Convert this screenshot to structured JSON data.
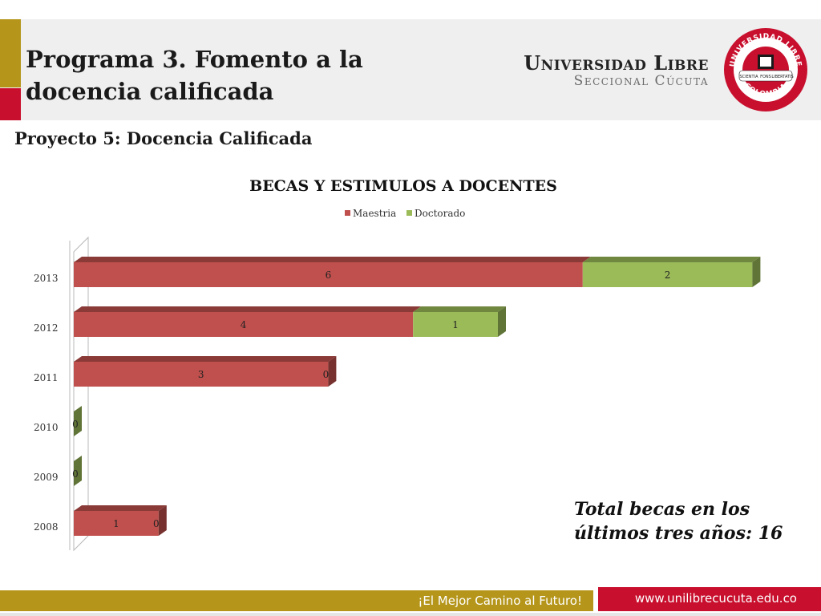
{
  "slide": {
    "title": "Programa 3. Fomento a la docencia calificada",
    "subtitle": "Proyecto 5: Docencia Calificada",
    "total_note": "Total becas en los últimos tres años: 16"
  },
  "logo": {
    "name": "Universidad Libre",
    "sub": "Seccional Cúcuta",
    "seal_top": "UNIVERSIDAD LIBRE",
    "seal_bottom": "COLOMBIA",
    "seal_left": "SCIENTIA",
    "seal_middle": "FONS",
    "seal_right": "LIBERTATIS"
  },
  "footer": {
    "motto": "¡El Mejor Camino al Futuro!",
    "url": "www.unilibrecucuta.edu.co"
  },
  "colors": {
    "maestria": "#c0504d",
    "doctorado": "#9bbb59",
    "accent_olive": "#b5961b",
    "accent_red": "#c8102e"
  },
  "chart_data": {
    "type": "bar",
    "orientation": "horizontal",
    "stacked": true,
    "three_d": true,
    "title": "BECAS Y ESTIMULOS A DOCENTES",
    "categories": [
      "2013",
      "2012",
      "2011",
      "2010",
      "2009",
      "2008"
    ],
    "series": [
      {
        "name": "Maestria",
        "values": [
          6,
          4,
          3,
          0,
          0,
          1
        ],
        "labels": [
          "6",
          "4",
          "3",
          "",
          "",
          "1"
        ]
      },
      {
        "name": "Doctorado",
        "values": [
          2,
          1,
          0,
          0,
          0,
          0
        ],
        "labels": [
          "2",
          "1",
          "0",
          "0",
          "0",
          "0"
        ]
      }
    ],
    "xlim": [
      0,
      8
    ],
    "legend": "top",
    "grid": false
  }
}
